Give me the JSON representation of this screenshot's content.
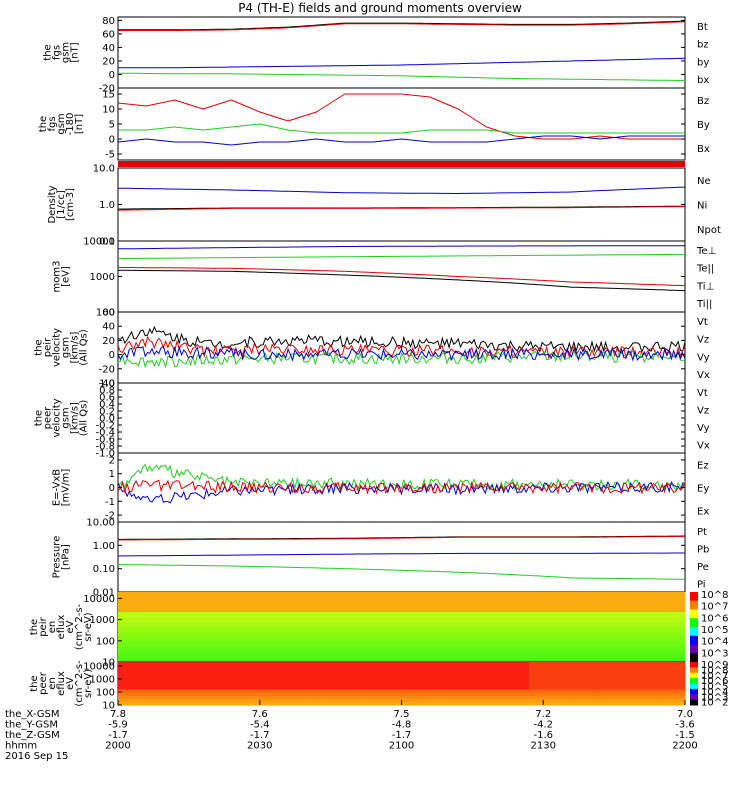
{
  "title": "P4 (TH-E) fields and ground moments overview",
  "colors": {
    "black": "#000000",
    "red": "#e00000",
    "green": "#22cc22",
    "blue": "#0000cc"
  },
  "chart_data": [
    {
      "type": "line",
      "ylabel": [
        "the",
        "fgs",
        "gsm",
        "[nT]"
      ],
      "yticks": [
        "80",
        "60",
        "40",
        "20",
        "0",
        "-20"
      ],
      "ylim": [
        -20,
        85
      ],
      "legend": [
        "Bt",
        "bz",
        "by",
        "bx"
      ],
      "series": [
        {
          "name": "Bt",
          "color": "black",
          "x": [
            0,
            0.1,
            0.2,
            0.3,
            0.4,
            0.5,
            0.6,
            0.7,
            0.8,
            0.9,
            1.0
          ],
          "y": [
            66,
            66,
            67,
            70,
            76,
            76,
            75,
            74,
            74,
            76,
            79
          ]
        },
        {
          "name": "bz",
          "color": "red",
          "x": [
            0,
            0.1,
            0.2,
            0.3,
            0.4,
            0.5,
            0.6,
            0.7,
            0.8,
            0.9,
            1.0
          ],
          "y": [
            65,
            65,
            66,
            69,
            75,
            75,
            74,
            73,
            73,
            75,
            78
          ]
        },
        {
          "name": "by",
          "color": "blue",
          "x": [
            0,
            0.1,
            0.2,
            0.3,
            0.4,
            0.5,
            0.6,
            0.7,
            0.8,
            0.9,
            1.0
          ],
          "y": [
            10,
            10,
            11,
            12,
            13,
            14,
            16,
            18,
            20,
            22,
            24
          ]
        },
        {
          "name": "bx",
          "color": "green",
          "x": [
            0,
            0.1,
            0.2,
            0.3,
            0.4,
            0.5,
            0.6,
            0.7,
            0.8,
            0.9,
            1.0
          ],
          "y": [
            2,
            1,
            1,
            0,
            -1,
            -2,
            -4,
            -6,
            -7,
            -8,
            -9
          ]
        }
      ]
    },
    {
      "type": "line",
      "ylabel": [
        "the",
        "fgs",
        "gsm",
        "-180",
        "[nT]"
      ],
      "yticks": [
        "15",
        "10",
        "5",
        "0",
        "-5"
      ],
      "ylim": [
        -7,
        17
      ],
      "legend": [
        "Bz",
        "By",
        "Bx"
      ],
      "series": [
        {
          "name": "Bz",
          "color": "red",
          "x": [
            0,
            0.05,
            0.1,
            0.15,
            0.2,
            0.25,
            0.3,
            0.35,
            0.4,
            0.45,
            0.5,
            0.55,
            0.6,
            0.65,
            0.7,
            0.75,
            0.8,
            0.85,
            0.9,
            1.0
          ],
          "y": [
            12,
            11,
            13,
            10,
            13,
            9,
            6,
            9,
            15,
            15,
            15,
            14,
            10,
            4,
            1,
            0,
            0,
            1,
            0,
            0
          ]
        },
        {
          "name": "By",
          "color": "green",
          "x": [
            0,
            0.05,
            0.1,
            0.15,
            0.2,
            0.25,
            0.3,
            0.35,
            0.4,
            0.45,
            0.5,
            0.55,
            0.6,
            0.65,
            0.7,
            0.75,
            0.8,
            0.85,
            0.9,
            1.0
          ],
          "y": [
            3,
            3,
            4,
            3,
            4,
            5,
            3,
            2,
            2,
            2,
            2,
            3,
            3,
            3,
            2,
            2,
            2,
            2,
            2,
            2
          ]
        },
        {
          "name": "Bx",
          "color": "blue",
          "x": [
            0,
            0.05,
            0.1,
            0.15,
            0.2,
            0.25,
            0.3,
            0.35,
            0.4,
            0.45,
            0.5,
            0.55,
            0.6,
            0.65,
            0.7,
            0.75,
            0.8,
            0.85,
            0.9,
            1.0
          ],
          "y": [
            -1,
            0,
            -1,
            -1,
            -2,
            -1,
            -1,
            0,
            -1,
            -1,
            0,
            -1,
            -1,
            -1,
            0,
            1,
            1,
            0,
            1,
            1
          ]
        }
      ]
    },
    {
      "type": "bar",
      "color": "red"
    },
    {
      "type": "line",
      "log": true,
      "ylabel": [
        "Density",
        "[1/cc]",
        "[cm-3]"
      ],
      "yticks": [
        "10.0",
        "1.0",
        "0.1"
      ],
      "ylim": [
        0.1,
        10
      ],
      "legend": [
        "Ne",
        "Ni",
        "Npot"
      ],
      "series": [
        {
          "name": "Npot",
          "color": "blue",
          "x": [
            0,
            0.2,
            0.4,
            0.6,
            0.8,
            1.0
          ],
          "y": [
            2.8,
            2.5,
            2.1,
            2.0,
            2.2,
            3.0
          ]
        },
        {
          "name": "Ni",
          "color": "black",
          "x": [
            0,
            0.2,
            0.4,
            0.6,
            0.8,
            1.0
          ],
          "y": [
            0.75,
            0.8,
            0.8,
            0.82,
            0.85,
            0.9
          ]
        },
        {
          "name": "Ne",
          "color": "red",
          "x": [
            0,
            0.2,
            0.4,
            0.6,
            0.8,
            1.0
          ],
          "y": [
            0.7,
            0.78,
            0.78,
            0.8,
            0.82,
            0.88
          ]
        }
      ]
    },
    {
      "type": "line",
      "log": true,
      "ylabel": [
        "mom3",
        "[eV]"
      ],
      "yticks": [
        "10000",
        "1000",
        "100"
      ],
      "ylim": [
        100,
        10000
      ],
      "legend": [
        "Te⊥",
        "Te||",
        "Ti⊥",
        "Ti||"
      ],
      "series": [
        {
          "name": "Ti⊥",
          "color": "blue",
          "x": [
            0,
            0.2,
            0.4,
            0.6,
            0.8,
            1.0
          ],
          "y": [
            6000,
            6500,
            7000,
            7200,
            7300,
            7400
          ]
        },
        {
          "name": "Ti||",
          "color": "green",
          "x": [
            0,
            0.2,
            0.4,
            0.6,
            0.8,
            1.0
          ],
          "y": [
            3200,
            3400,
            3600,
            3800,
            4000,
            4200
          ]
        },
        {
          "name": "Te⊥",
          "color": "red",
          "x": [
            0,
            0.2,
            0.4,
            0.6,
            0.8,
            1.0
          ],
          "y": [
            1800,
            1700,
            1400,
            1000,
            700,
            550
          ]
        },
        {
          "name": "Te||",
          "color": "black",
          "x": [
            0,
            0.2,
            0.4,
            0.6,
            0.8,
            1.0
          ],
          "y": [
            1500,
            1400,
            1100,
            800,
            500,
            400
          ]
        }
      ]
    },
    {
      "type": "line",
      "ylabel": [
        "the",
        "peir",
        "velocity",
        "gsm",
        "[km/s]",
        "(All Qs)"
      ],
      "yticks": [
        "60",
        "40",
        "20",
        "0",
        "-20",
        "-40"
      ],
      "ylim": [
        -40,
        60
      ],
      "legend": [
        "Vt",
        "Vz",
        "Vy",
        "Vx"
      ],
      "series": [
        {
          "name": "Vt",
          "color": "black",
          "x": [
            0,
            0.05,
            0.15,
            0.3,
            0.45,
            0.6,
            0.75,
            0.9,
            1.0
          ],
          "y": [
            20,
            35,
            15,
            20,
            18,
            15,
            10,
            10,
            12
          ]
        },
        {
          "name": "Vz",
          "color": "red",
          "x": [
            0,
            0.05,
            0.15,
            0.3,
            0.45,
            0.6,
            0.75,
            0.9,
            1.0
          ],
          "y": [
            5,
            20,
            5,
            8,
            6,
            5,
            3,
            3,
            4
          ]
        },
        {
          "name": "Vy",
          "color": "green",
          "x": [
            0,
            0.05,
            0.15,
            0.3,
            0.45,
            0.6,
            0.75,
            0.9,
            1.0
          ],
          "y": [
            -5,
            -10,
            -8,
            -5,
            -6,
            -5,
            -3,
            -3,
            -2
          ]
        },
        {
          "name": "Vx",
          "color": "blue",
          "x": [
            0,
            0.05,
            0.15,
            0.3,
            0.45,
            0.6,
            0.75,
            0.9,
            1.0
          ],
          "y": [
            0,
            5,
            2,
            0,
            1,
            0,
            0,
            0,
            0
          ]
        }
      ]
    },
    {
      "type": "line",
      "ylabel": [
        "the",
        "peer",
        "velocity",
        "gsm",
        "[km/s]",
        "(All Qs)"
      ],
      "yticks": [
        "1.0",
        "0.8",
        "0.6",
        "0.4",
        "0.2",
        "0.0",
        "-0.2",
        "-0.4",
        "-0.6",
        "-0.8",
        "-1.0"
      ],
      "ylim": [
        -1,
        1
      ],
      "legend": [
        "Vt",
        "Vz",
        "Vy",
        "Vx"
      ],
      "series": []
    },
    {
      "type": "line",
      "ylabel": [
        "E=-VxB",
        "[mV/m]"
      ],
      "yticks": [
        "2",
        "1",
        "0",
        "-1",
        "-2"
      ],
      "ylim": [
        -2.5,
        2.5
      ],
      "legend": [
        "Ez",
        "Ey",
        "Ex"
      ],
      "series": [
        {
          "name": "Ey",
          "color": "green",
          "x": [
            0,
            0.05,
            0.2,
            0.4,
            0.6,
            0.8,
            1.0
          ],
          "y": [
            0,
            1.5,
            0.3,
            0.3,
            0.2,
            0.2,
            0.2
          ]
        },
        {
          "name": "Ex",
          "color": "blue",
          "x": [
            0,
            0.05,
            0.2,
            0.4,
            0.6,
            0.8,
            1.0
          ],
          "y": [
            0,
            -1,
            -0.2,
            -0.1,
            -0.1,
            0,
            0
          ]
        },
        {
          "name": "Ez",
          "color": "red",
          "x": [
            0,
            0.05,
            0.2,
            0.4,
            0.6,
            0.8,
            1.0
          ],
          "y": [
            0,
            0.2,
            0,
            0,
            0,
            0,
            0
          ]
        }
      ]
    },
    {
      "type": "line",
      "log": true,
      "ylabel": [
        "Pressure",
        "[nPa]"
      ],
      "yticks": [
        "10.00",
        "1.00",
        "0.10",
        "0.01"
      ],
      "ylim": [
        0.01,
        10
      ],
      "legend": [
        "Pt",
        "Pb",
        "Pe",
        "Pi"
      ],
      "series": [
        {
          "name": "Pt",
          "color": "black",
          "x": [
            0,
            0.2,
            0.4,
            0.6,
            0.8,
            1.0
          ],
          "y": [
            1.8,
            1.9,
            2.0,
            2.3,
            2.3,
            2.5
          ]
        },
        {
          "name": "Pb",
          "color": "red",
          "x": [
            0,
            0.2,
            0.4,
            0.6,
            0.8,
            1.0
          ],
          "y": [
            1.7,
            1.8,
            1.9,
            2.2,
            2.2,
            2.4
          ]
        },
        {
          "name": "Pi",
          "color": "blue",
          "x": [
            0,
            0.2,
            0.4,
            0.6,
            0.8,
            1.0
          ],
          "y": [
            0.35,
            0.38,
            0.42,
            0.45,
            0.45,
            0.47
          ]
        },
        {
          "name": "Pe",
          "color": "green",
          "x": [
            0,
            0.2,
            0.4,
            0.6,
            0.8,
            1.0
          ],
          "y": [
            0.15,
            0.13,
            0.1,
            0.07,
            0.04,
            0.035
          ]
        }
      ]
    },
    {
      "type": "heatmap",
      "ylabel": [
        "the",
        "peir",
        "en",
        "eflux",
        "eV",
        "(cm^2-s-",
        "sr-eV)"
      ],
      "yticks": [
        "10000",
        "1000",
        "100",
        "10"
      ],
      "ylim": [
        10,
        20000
      ],
      "colorbar_label": "[eV/(cm^2-s-sr-eV)] (All Qs)",
      "colorbar_ticks": [
        "10^8",
        "10^7",
        "10^6",
        "10^5",
        "10^4",
        "10^3"
      ]
    },
    {
      "type": "heatmap",
      "ylabel": [
        "the",
        "peer",
        "en",
        "eflux",
        "eV",
        "(cm^2-s-",
        "sr-eV)"
      ],
      "yticks": [
        "10000",
        "1000",
        "100",
        "10"
      ],
      "ylim": [
        10,
        20000
      ],
      "colorbar_label": "[eV/(cm^2-s-sr-eV)] (All Qs)",
      "colorbar_ticks": [
        "10^9",
        "10^8",
        "10^7",
        "10^6",
        "10^5",
        "10^4",
        "10^3",
        "10^2"
      ]
    }
  ],
  "xaxis": {
    "rows": [
      {
        "label": "the_X-GSM",
        "values": [
          "7.8",
          "7.6",
          "7.5",
          "7.2",
          "7.0"
        ]
      },
      {
        "label": "the_Y-GSM",
        "values": [
          "-5.9",
          "-5.4",
          "-4.8",
          "-4.2",
          "-3.6"
        ]
      },
      {
        "label": "the_Z-GSM",
        "values": [
          "-1.7",
          "-1.7",
          "-1.7",
          "-1.6",
          "-1.5"
        ]
      },
      {
        "label": "hhmm",
        "values": [
          "2000",
          "2030",
          "2100",
          "2130",
          "2200"
        ]
      }
    ],
    "date": "2016 Sep 15"
  }
}
